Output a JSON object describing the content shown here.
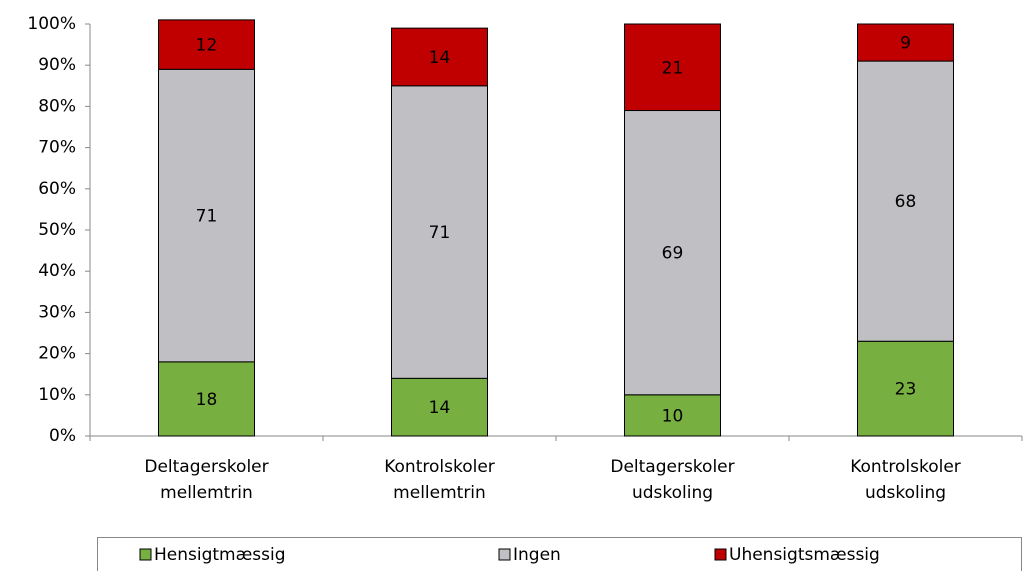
{
  "chart_data": {
    "type": "stacked_bar",
    "categories": [
      "Deltagerskoler mellemtrin",
      "Kontrolskoler mellemtrin",
      "Deltagerskoler udskoling",
      "Kontrolskoler udskoling"
    ],
    "series": [
      {
        "name": "Hensigtmæssig",
        "color": "#77b040",
        "values": [
          18,
          14,
          10,
          23
        ]
      },
      {
        "name": "Ingen",
        "color": "#c0c0c4",
        "values": [
          71,
          71,
          69,
          68
        ]
      },
      {
        "name": "Uhensigtsmæssig",
        "color": "#c00000",
        "values": [
          12,
          14,
          21,
          9
        ]
      }
    ],
    "ylim": [
      0,
      100
    ],
    "yticks": [
      {
        "value": 0,
        "label": "0%"
      },
      {
        "value": 10,
        "label": "10%"
      },
      {
        "value": 20,
        "label": "20%"
      },
      {
        "value": 30,
        "label": "30%"
      },
      {
        "value": 40,
        "label": "40%"
      },
      {
        "value": 50,
        "label": "50%"
      },
      {
        "value": 60,
        "label": "60%"
      },
      {
        "value": 70,
        "label": "70%"
      },
      {
        "value": 80,
        "label": "80%"
      },
      {
        "value": 90,
        "label": "90%"
      },
      {
        "value": 100,
        "label": "100%"
      }
    ],
    "legend": "bottom"
  }
}
